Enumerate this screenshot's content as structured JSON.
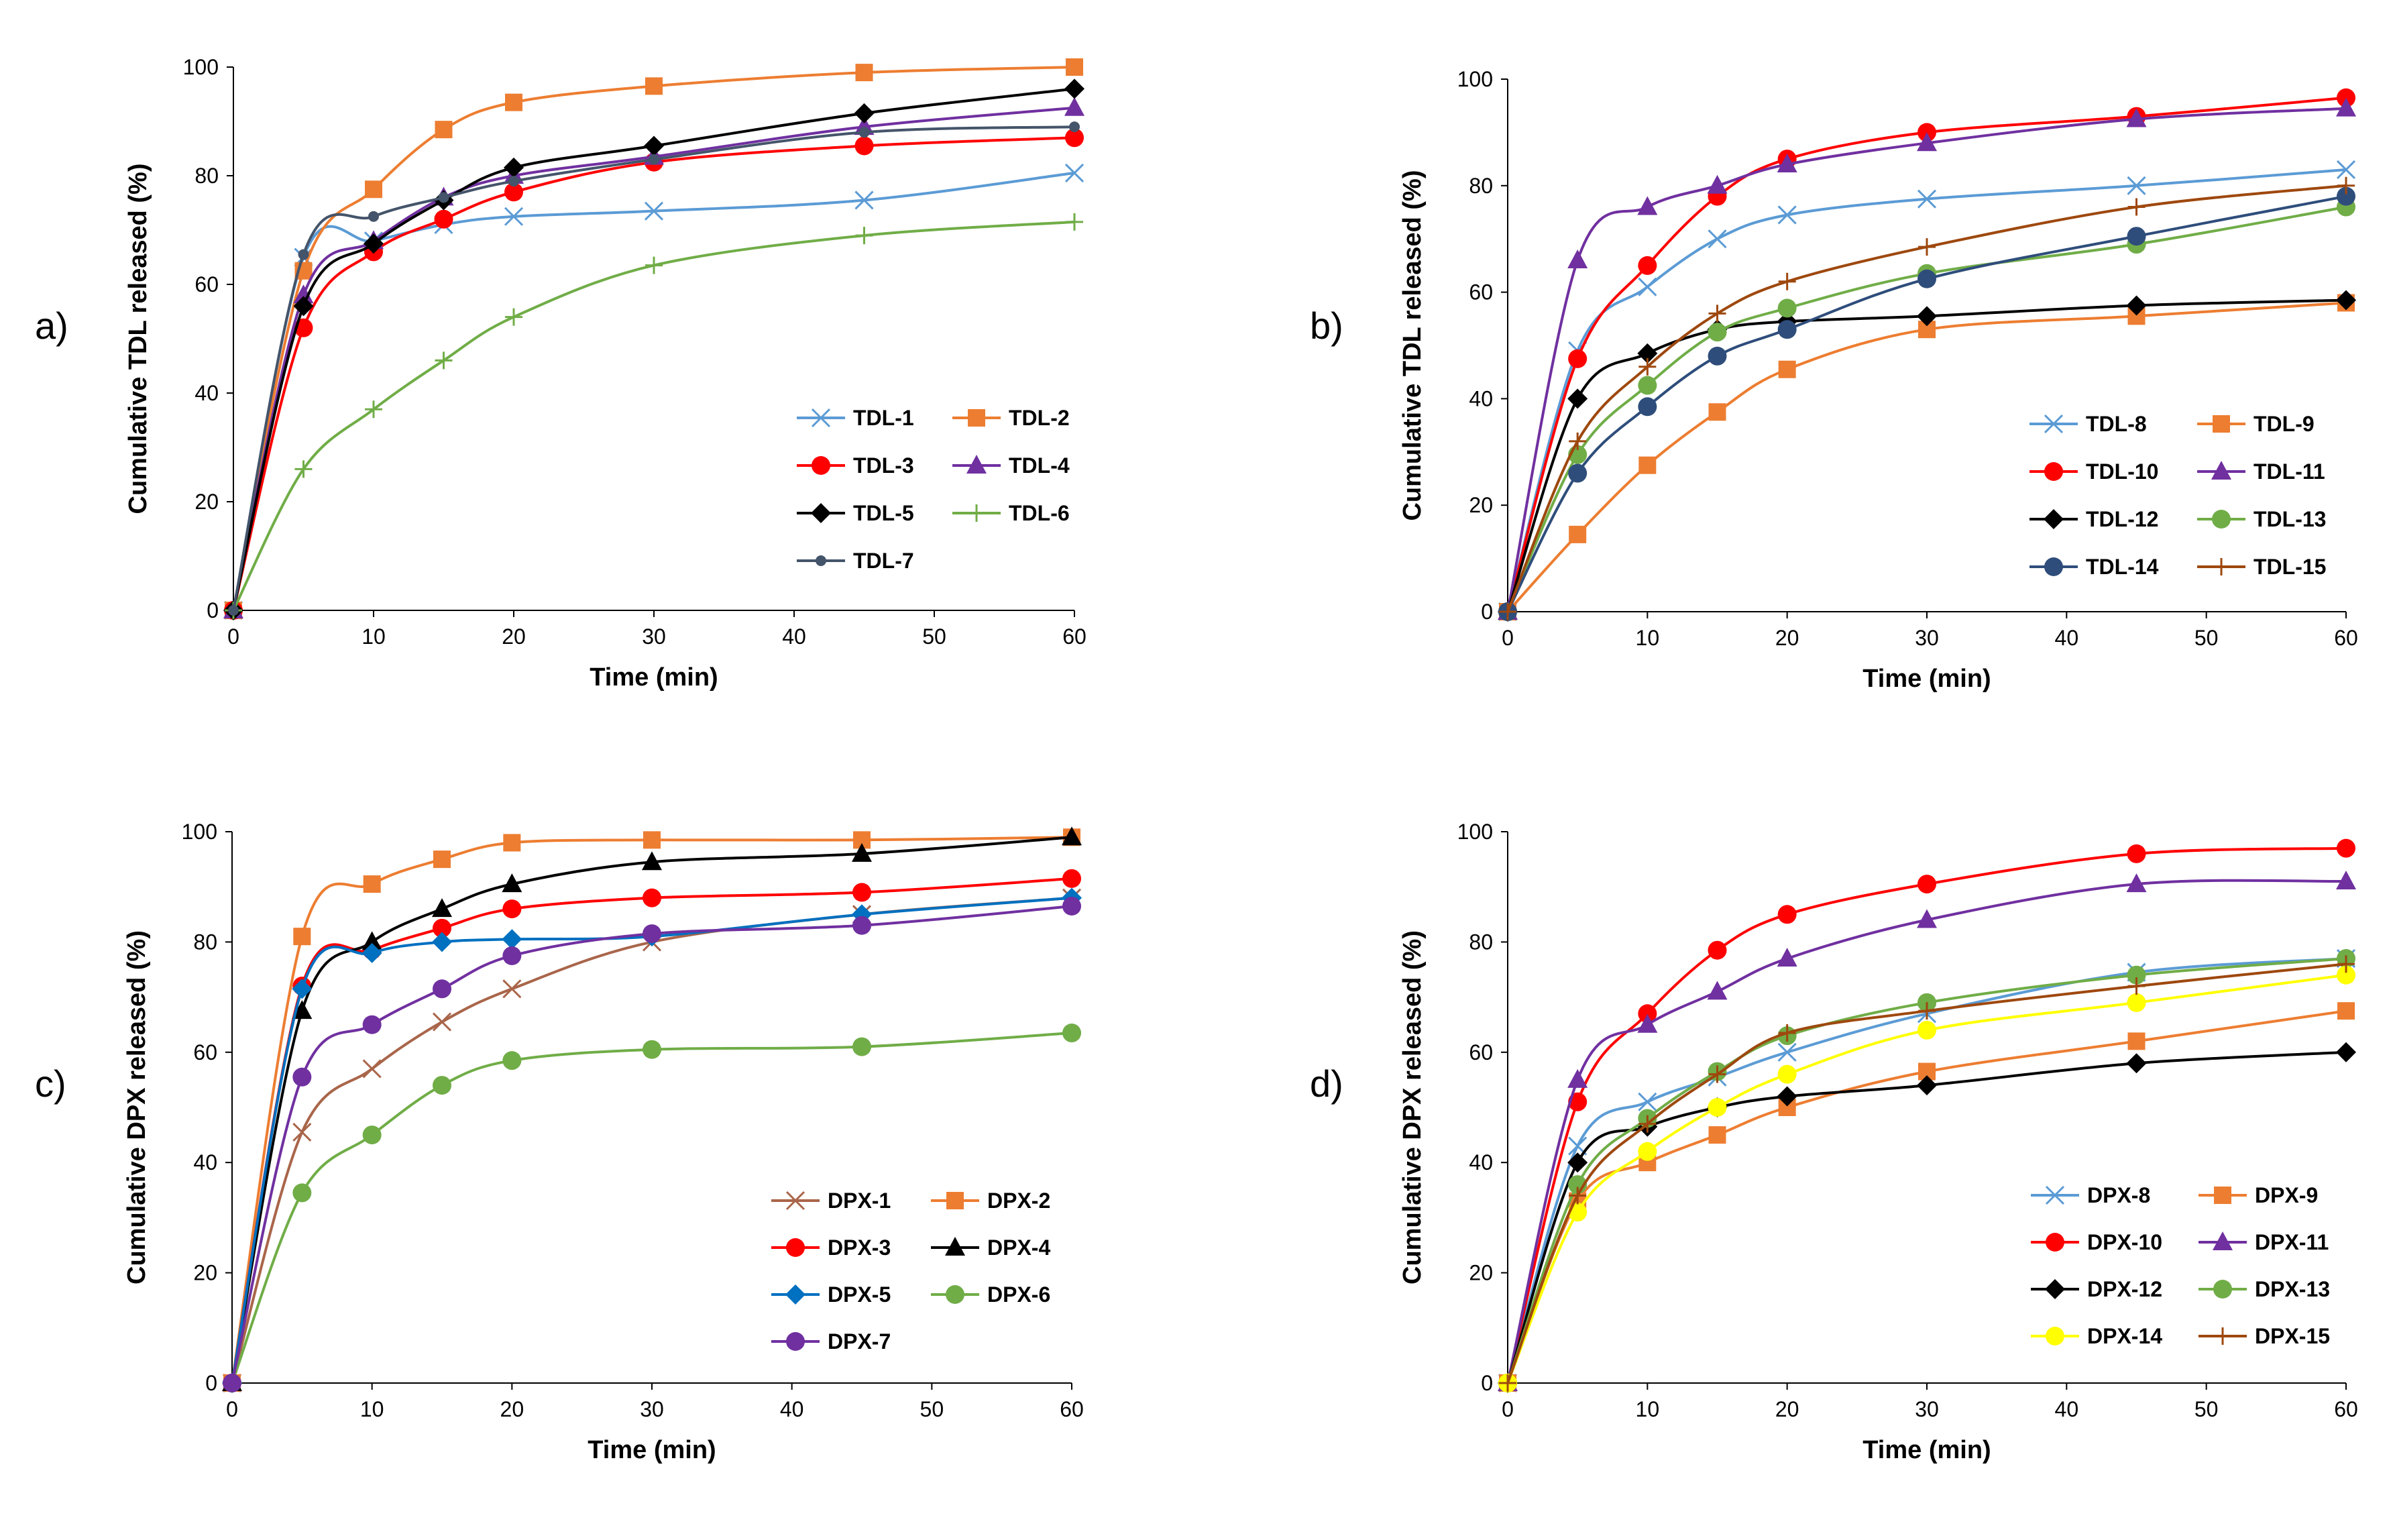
{
  "figure_title": "",
  "chart_data": [
    {
      "panel_label": "a)",
      "type": "line",
      "xlabel": "Time (min)",
      "ylabel": "Cumulative TDL released (%)",
      "xlim": [
        0,
        60
      ],
      "ylim": [
        0,
        100
      ],
      "xticks": [
        0,
        10,
        20,
        30,
        40,
        50,
        60
      ],
      "yticks": [
        0,
        20,
        40,
        60,
        80,
        100
      ],
      "x": [
        0,
        5,
        10,
        15,
        20,
        30,
        45,
        60
      ],
      "series": [
        {
          "name": "TDL-1",
          "color": "#5b9bd5",
          "marker": "x",
          "values": [
            0,
            65,
            68,
            71,
            72.5,
            73.5,
            75.5,
            80.5
          ]
        },
        {
          "name": "TDL-2",
          "color": "#ed7d31",
          "marker": "square",
          "values": [
            0,
            62.5,
            77.5,
            88.5,
            93.5,
            96.5,
            99,
            100
          ]
        },
        {
          "name": "TDL-3",
          "color": "#ff0000",
          "marker": "circle",
          "values": [
            0,
            52,
            66,
            72,
            77,
            82.5,
            85.5,
            87
          ]
        },
        {
          "name": "TDL-4",
          "color": "#7030a0",
          "marker": "triangle",
          "values": [
            0,
            58,
            68,
            76,
            80,
            83.5,
            89,
            92.5
          ]
        },
        {
          "name": "TDL-5",
          "color": "#000000",
          "marker": "diamond",
          "values": [
            0,
            56,
            67.5,
            75.5,
            81.5,
            85.5,
            91.5,
            96
          ]
        },
        {
          "name": "TDL-6",
          "color": "#70ad47",
          "marker": "plus",
          "values": [
            0,
            26,
            37,
            46,
            54,
            63.5,
            69,
            71.5
          ]
        },
        {
          "name": "TDL-7",
          "color": "#44546a",
          "marker": "dot",
          "values": [
            0,
            65.5,
            72.5,
            76,
            79,
            83,
            88,
            89
          ]
        }
      ]
    },
    {
      "panel_label": "b)",
      "type": "line",
      "xlabel": "Time (min)",
      "ylabel": "Cumulative TDL released (%)",
      "xlim": [
        0,
        60
      ],
      "ylim": [
        0,
        100
      ],
      "xticks": [
        0,
        10,
        20,
        30,
        40,
        50,
        60
      ],
      "yticks": [
        0,
        20,
        40,
        60,
        80,
        100
      ],
      "x": [
        0,
        5,
        10,
        15,
        20,
        30,
        45,
        60
      ],
      "series": [
        {
          "name": "TDL-8",
          "color": "#5b9bd5",
          "marker": "x",
          "values": [
            0,
            49,
            61,
            70,
            74.5,
            77.5,
            80,
            83
          ]
        },
        {
          "name": "TDL-9",
          "color": "#ed7d31",
          "marker": "square",
          "values": [
            0,
            14.5,
            27.5,
            37.5,
            45.5,
            53,
            55.5,
            58
          ]
        },
        {
          "name": "TDL-10",
          "color": "#ff0000",
          "marker": "circle",
          "values": [
            0,
            47.5,
            65,
            78,
            85,
            90,
            93,
            96.5
          ]
        },
        {
          "name": "TDL-11",
          "color": "#7030a0",
          "marker": "triangle",
          "values": [
            0,
            66,
            76,
            80,
            84,
            88,
            92.5,
            94.5
          ]
        },
        {
          "name": "TDL-12",
          "color": "#000000",
          "marker": "diamond",
          "values": [
            0,
            40,
            48.5,
            53,
            54.5,
            55.5,
            57.5,
            58.5
          ]
        },
        {
          "name": "TDL-13",
          "color": "#70ad47",
          "marker": "circle",
          "values": [
            0,
            29.5,
            42.5,
            52.5,
            57,
            63.5,
            69,
            76
          ]
        },
        {
          "name": "TDL-14",
          "color": "#2e4d7b",
          "marker": "circle",
          "values": [
            0,
            26,
            38.5,
            48,
            53,
            62.5,
            70.5,
            78
          ]
        },
        {
          "name": "TDL-15",
          "color": "#9e480e",
          "marker": "plus",
          "values": [
            0,
            32,
            46,
            56,
            62,
            68.5,
            76,
            80
          ]
        }
      ]
    },
    {
      "panel_label": "c)",
      "type": "line",
      "xlabel": "Time (min)",
      "ylabel": "Cumulative DPX released (%)",
      "xlim": [
        0,
        60
      ],
      "ylim": [
        0,
        100
      ],
      "xticks": [
        0,
        10,
        20,
        30,
        40,
        50,
        60
      ],
      "yticks": [
        0,
        20,
        40,
        60,
        80,
        100
      ],
      "x": [
        0,
        5,
        10,
        15,
        20,
        30,
        45,
        60
      ],
      "series": [
        {
          "name": "DPX-1",
          "color": "#a9654a",
          "marker": "x",
          "values": [
            0,
            45.5,
            57,
            65.5,
            71.5,
            80,
            85,
            88
          ]
        },
        {
          "name": "DPX-2",
          "color": "#ed7d31",
          "marker": "square",
          "values": [
            0,
            81,
            90.5,
            95,
            98,
            98.5,
            98.5,
            99
          ]
        },
        {
          "name": "DPX-3",
          "color": "#ff0000",
          "marker": "circle",
          "values": [
            0,
            72,
            78.5,
            82.5,
            86,
            88,
            89,
            91.5
          ]
        },
        {
          "name": "DPX-4",
          "color": "#000000",
          "marker": "triangle",
          "values": [
            0,
            67.5,
            80,
            86,
            90.5,
            94.5,
            96,
            99
          ]
        },
        {
          "name": "DPX-5",
          "color": "#0070c0",
          "marker": "diamond",
          "values": [
            0,
            71.5,
            78,
            80,
            80.5,
            81,
            85,
            88
          ]
        },
        {
          "name": "DPX-6",
          "color": "#70ad47",
          "marker": "circle",
          "values": [
            0,
            34.5,
            45,
            54,
            58.5,
            60.5,
            61,
            63.5
          ]
        },
        {
          "name": "DPX-7",
          "color": "#7030a0",
          "marker": "circle",
          "values": [
            0,
            55.5,
            65,
            71.5,
            77.5,
            81.5,
            83,
            86.5
          ]
        }
      ]
    },
    {
      "panel_label": "d)",
      "type": "line",
      "xlabel": "Time (min)",
      "ylabel": "Cumulative DPX released (%)",
      "xlim": [
        0,
        60
      ],
      "ylim": [
        0,
        100
      ],
      "xticks": [
        0,
        10,
        20,
        30,
        40,
        50,
        60
      ],
      "yticks": [
        0,
        20,
        40,
        60,
        80,
        100
      ],
      "x": [
        0,
        5,
        10,
        15,
        20,
        30,
        45,
        60
      ],
      "series": [
        {
          "name": "DPX-8",
          "color": "#5b9bd5",
          "marker": "x",
          "values": [
            0,
            43,
            51,
            55.5,
            60,
            67,
            74.5,
            77
          ]
        },
        {
          "name": "DPX-9",
          "color": "#ed7d31",
          "marker": "square",
          "values": [
            0,
            33,
            40,
            45,
            50,
            56.5,
            62,
            67.5
          ]
        },
        {
          "name": "DPX-10",
          "color": "#ff0000",
          "marker": "circle",
          "values": [
            0,
            51,
            67,
            78.5,
            85,
            90.5,
            96,
            97
          ]
        },
        {
          "name": "DPX-11",
          "color": "#7030a0",
          "marker": "triangle",
          "values": [
            0,
            55,
            65,
            71,
            77,
            84,
            90.5,
            91
          ]
        },
        {
          "name": "DPX-12",
          "color": "#000000",
          "marker": "diamond",
          "values": [
            0,
            40,
            46.5,
            50,
            52,
            54,
            58,
            60
          ]
        },
        {
          "name": "DPX-13",
          "color": "#70ad47",
          "marker": "circle",
          "values": [
            0,
            36,
            48,
            56.5,
            63,
            69,
            74,
            77
          ]
        },
        {
          "name": "DPX-14",
          "color": "#ffff00",
          "marker": "circle",
          "values": [
            0,
            31,
            42,
            50,
            56,
            64,
            69,
            74
          ]
        },
        {
          "name": "DPX-15",
          "color": "#9e480e",
          "marker": "plus",
          "values": [
            0,
            34,
            47,
            56,
            63.5,
            67.5,
            72,
            76
          ]
        }
      ]
    }
  ]
}
